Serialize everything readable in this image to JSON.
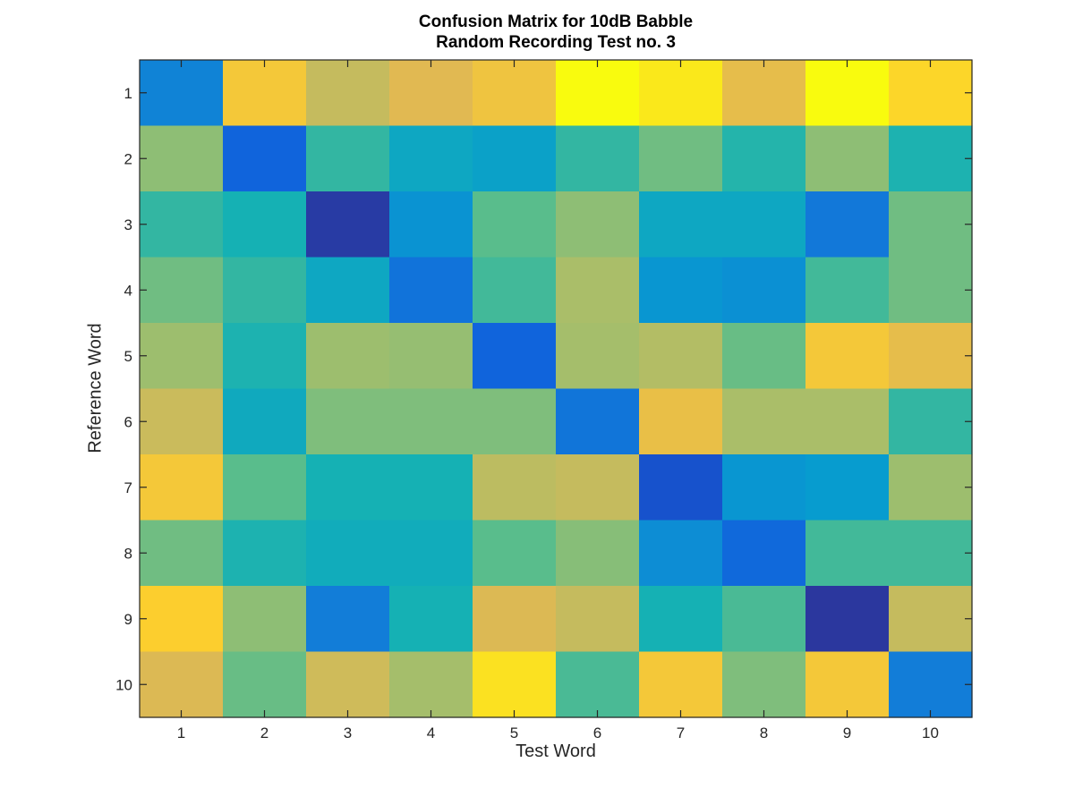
{
  "chart_data": {
    "type": "heatmap",
    "title": [
      "Confusion Matrix for 10dB Babble",
      "Random Recording Test no. 3"
    ],
    "xlabel": "Test Word",
    "ylabel": "Reference Word",
    "x_ticks": [
      "1",
      "2",
      "3",
      "4",
      "5",
      "6",
      "7",
      "8",
      "9",
      "10"
    ],
    "y_ticks": [
      "1",
      "2",
      "3",
      "4",
      "5",
      "6",
      "7",
      "8",
      "9",
      "10"
    ],
    "colormap": "parula",
    "color_range": [
      0,
      1
    ],
    "values": [
      [
        0.3,
        0.85,
        0.72,
        0.78,
        0.83,
        1.0,
        0.95,
        0.8,
        1.0,
        0.9
      ],
      [
        0.62,
        0.18,
        0.5,
        0.42,
        0.4,
        0.5,
        0.58,
        0.48,
        0.62,
        0.47
      ],
      [
        0.5,
        0.46,
        0.05,
        0.35,
        0.55,
        0.62,
        0.42,
        0.42,
        0.26,
        0.58
      ],
      [
        0.58,
        0.5,
        0.42,
        0.24,
        0.52,
        0.66,
        0.36,
        0.34,
        0.52,
        0.58
      ],
      [
        0.64,
        0.47,
        0.64,
        0.63,
        0.18,
        0.65,
        0.68,
        0.57,
        0.85,
        0.8
      ],
      [
        0.73,
        0.43,
        0.6,
        0.6,
        0.6,
        0.25,
        0.81,
        0.66,
        0.66,
        0.5
      ],
      [
        0.85,
        0.55,
        0.46,
        0.46,
        0.7,
        0.72,
        0.12,
        0.36,
        0.38,
        0.64
      ],
      [
        0.58,
        0.47,
        0.44,
        0.44,
        0.55,
        0.61,
        0.33,
        0.2,
        0.52,
        0.52
      ],
      [
        0.88,
        0.62,
        0.28,
        0.46,
        0.77,
        0.72,
        0.46,
        0.53,
        0.04,
        0.72
      ],
      [
        0.77,
        0.57,
        0.74,
        0.65,
        0.93,
        0.53,
        0.85,
        0.6,
        0.85,
        0.28
      ]
    ]
  },
  "colors": {
    "axis": "#262626",
    "background": "#ffffff"
  }
}
